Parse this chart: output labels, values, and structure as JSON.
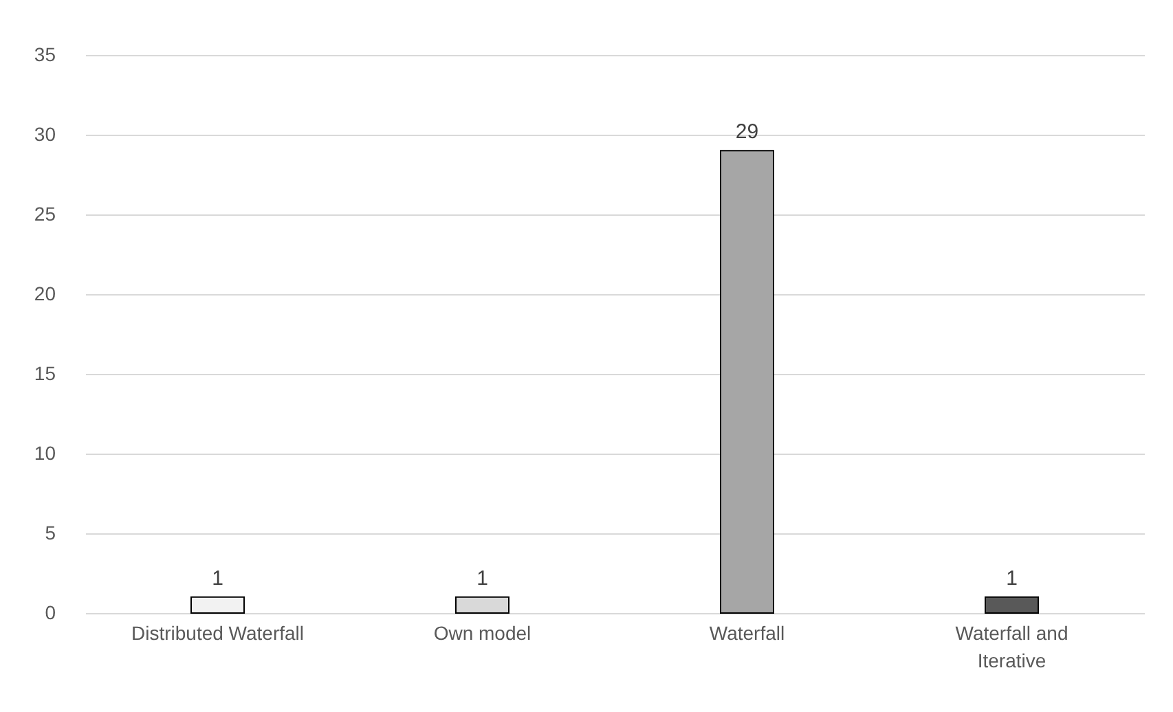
{
  "chart_data": {
    "type": "bar",
    "categories": [
      "Distributed Waterfall",
      "Own model",
      "Waterfall",
      "Waterfall and Iterative"
    ],
    "values": [
      1,
      1,
      29,
      1
    ],
    "colors": [
      "#f2f2f2",
      "#d9d9d9",
      "#a6a6a6",
      "#595959"
    ],
    "ylim": [
      0,
      35
    ],
    "yticks": [
      0,
      5,
      10,
      15,
      20,
      25,
      30,
      35
    ],
    "grid": "y",
    "data_labels": true
  }
}
